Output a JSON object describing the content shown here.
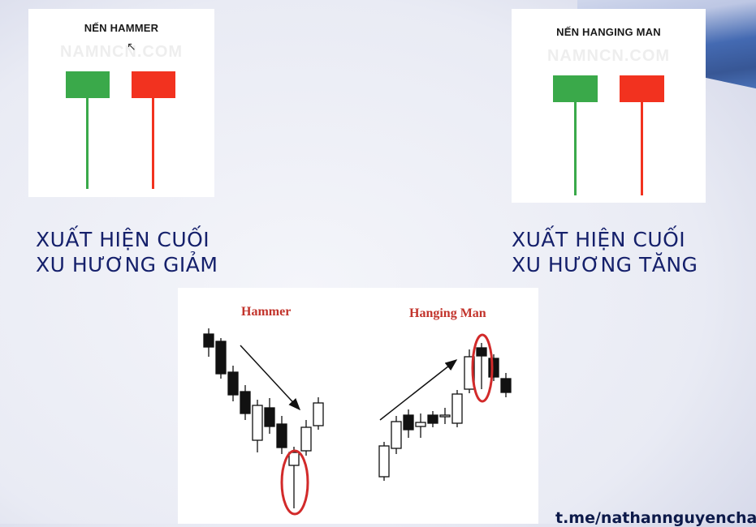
{
  "left_card": {
    "title": "NẾN HAMMER",
    "watermark": "NAMNCN.COM",
    "candle_colors": [
      "#3aa94a",
      "#f2321f"
    ]
  },
  "right_card": {
    "title": "NẾN HANGING MAN",
    "watermark": "NAMNCN.COM",
    "candle_colors": [
      "#3aa94a",
      "#f2321f"
    ]
  },
  "left_caption": {
    "line1": "XUẤT HIỆN CUỐI",
    "line2": "XU HƯƠNG GIẢM"
  },
  "right_caption": {
    "line1": "XUẤT HIỆN CUỐI",
    "line2": "XU HƯƠNG TĂNG"
  },
  "chart_panel": {
    "hammer_label": "Hammer",
    "hanging_man_label": "Hanging Man",
    "label_color": "#c2332b",
    "highlight_color": "#d22a2a"
  },
  "footer": {
    "link": "t.me/nathannguyencha"
  },
  "colors": {
    "caption_text": "#15206b",
    "bullish": "#3aa94a",
    "bearish": "#f2321f"
  }
}
